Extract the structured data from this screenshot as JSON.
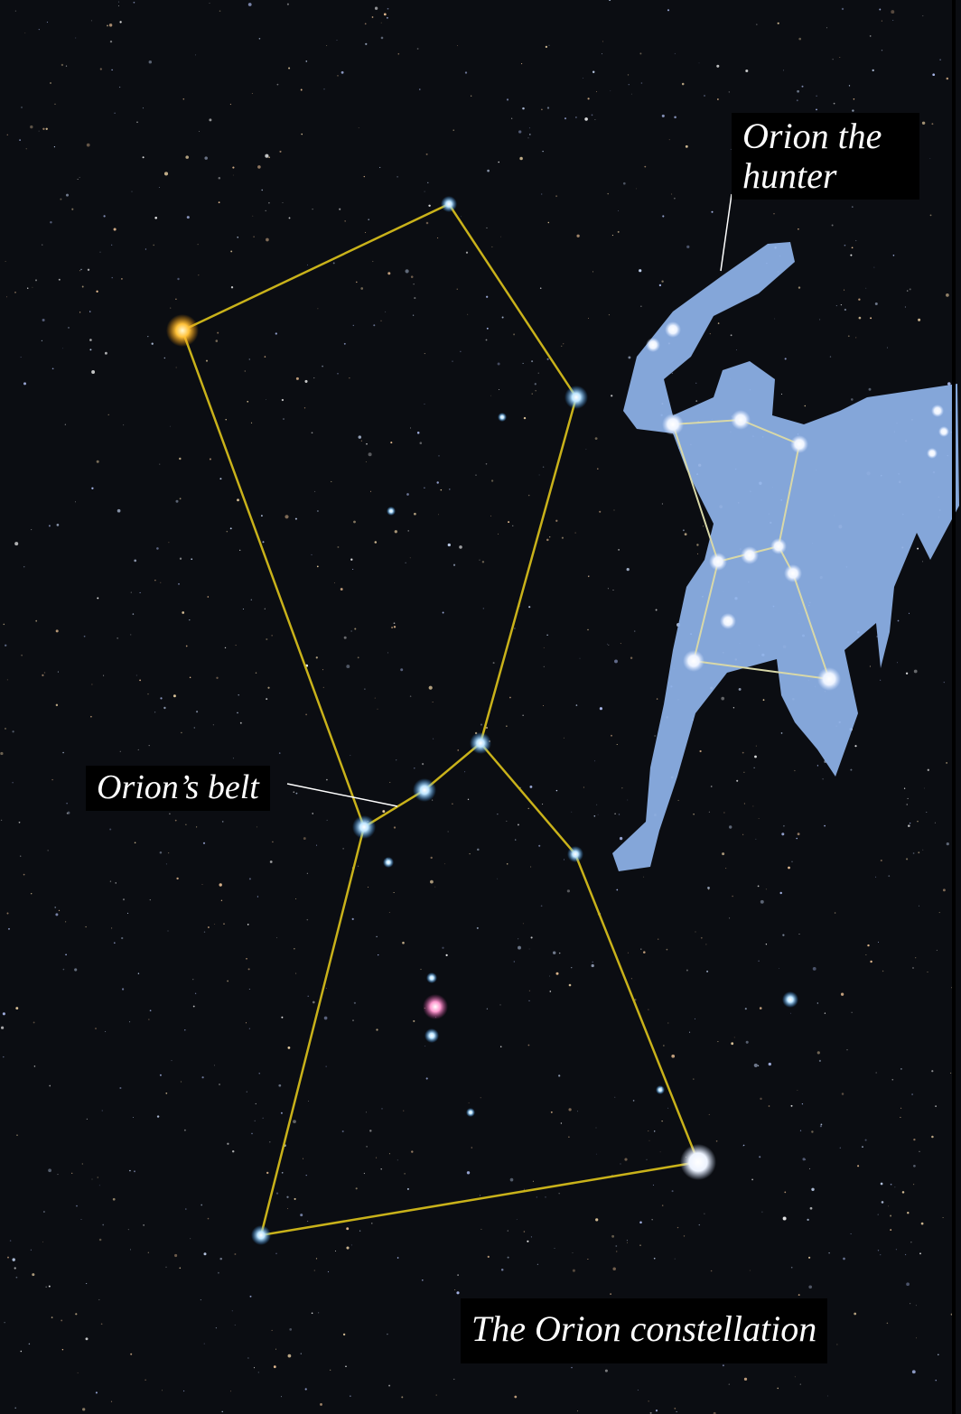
{
  "labels": {
    "hunter": "Orion the hunter",
    "belt": "Orion’s belt",
    "constellation": "The Orion constellation"
  }
}
